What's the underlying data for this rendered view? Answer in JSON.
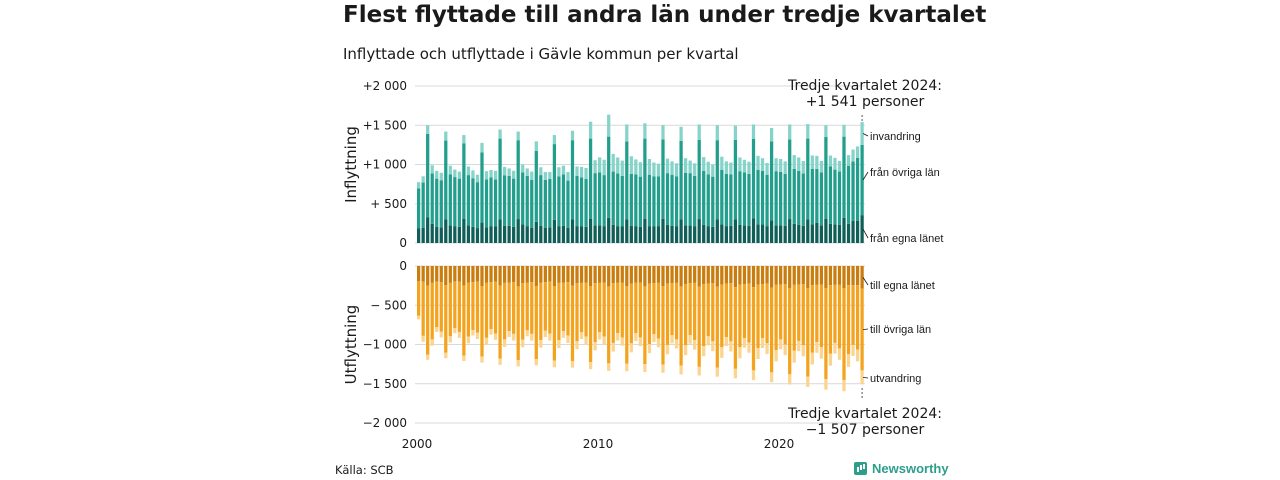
{
  "title": "Flest flyttade till andra län under tredje kvartalet",
  "subtitle": "Inflyttade och utflyttade i Gävle kommun per kvartal",
  "source": "Källa: SCB",
  "brand": {
    "name": "Newsworthy",
    "icon": "chart-bubble-icon"
  },
  "chart_data": [
    {
      "type": "bar",
      "stacked": true,
      "ylabel": "Inflyttning",
      "ylim": [
        0,
        2000
      ],
      "yticks": [
        0,
        500,
        1000,
        1500,
        2000
      ],
      "ytick_labels": [
        "0",
        "+ 500",
        "+1 000",
        "+1 500",
        "+2 000"
      ],
      "grid": true,
      "x_start": "2000 Q1",
      "quarters": 99,
      "xticks": [
        "2000",
        "2010",
        "2020"
      ],
      "note": [
        "Tredje kvartalet 2024:",
        "+1 541 personer"
      ],
      "series": [
        {
          "name": "från egna länet",
          "color": "#0f5e57",
          "values": [
            185,
            195,
            325,
            245,
            205,
            200,
            300,
            225,
            215,
            205,
            310,
            225,
            205,
            190,
            260,
            200,
            215,
            210,
            300,
            220,
            220,
            205,
            305,
            235,
            215,
            195,
            270,
            220,
            195,
            200,
            295,
            210,
            220,
            195,
            300,
            215,
            210,
            205,
            310,
            225,
            225,
            215,
            320,
            230,
            215,
            210,
            300,
            220,
            215,
            205,
            310,
            215,
            210,
            215,
            310,
            230,
            220,
            215,
            300,
            225,
            225,
            210,
            305,
            230,
            215,
            205,
            300,
            235,
            215,
            220,
            300,
            230,
            225,
            220,
            315,
            235,
            235,
            215,
            290,
            225,
            225,
            220,
            305,
            245,
            230,
            220,
            300,
            235,
            255,
            225,
            310,
            245,
            235,
            230,
            320,
            245,
            280,
            285,
            355
          ]
        },
        {
          "name": "från övriga län",
          "color": "#229e8d",
          "values": [
            510,
            575,
            1065,
            640,
            615,
            600,
            1005,
            650,
            625,
            615,
            960,
            640,
            620,
            585,
            895,
            610,
            620,
            600,
            1030,
            640,
            635,
            615,
            1005,
            665,
            640,
            610,
            905,
            645,
            610,
            615,
            965,
            640,
            655,
            600,
            1010,
            640,
            625,
            610,
            1020,
            665,
            675,
            650,
            1035,
            680,
            670,
            645,
            995,
            660,
            660,
            640,
            1020,
            655,
            640,
            635,
            1010,
            660,
            650,
            635,
            1000,
            670,
            665,
            645,
            1010,
            690,
            660,
            640,
            1010,
            695,
            665,
            655,
            1015,
            685,
            675,
            660,
            1010,
            695,
            685,
            655,
            1005,
            690,
            680,
            660,
            1015,
            700,
            690,
            665,
            1030,
            710,
            690,
            675,
            1040,
            730,
            700,
            680,
            1035,
            740,
            760,
            800,
            895
          ]
        },
        {
          "name": "invandring",
          "color": "#86d4c9",
          "values": [
            80,
            80,
            110,
            105,
            100,
            95,
            115,
            110,
            95,
            90,
            105,
            110,
            100,
            95,
            120,
            105,
            95,
            110,
            115,
            110,
            95,
            100,
            110,
            100,
            95,
            105,
            120,
            100,
            100,
            90,
            115,
            115,
            110,
            110,
            120,
            120,
            135,
            140,
            215,
            165,
            190,
            195,
            280,
            225,
            205,
            195,
            215,
            225,
            190,
            185,
            195,
            200,
            175,
            160,
            180,
            185,
            170,
            165,
            180,
            185,
            160,
            160,
            195,
            175,
            160,
            155,
            190,
            170,
            160,
            150,
            180,
            175,
            160,
            155,
            185,
            180,
            160,
            150,
            170,
            165,
            165,
            160,
            190,
            175,
            170,
            160,
            185,
            170,
            165,
            145,
            150,
            140,
            150,
            135,
            150,
            135,
            150,
            145,
            290
          ]
        }
      ]
    },
    {
      "type": "bar",
      "stacked": true,
      "ylabel": "Utflyttning",
      "ylim": [
        -2000,
        0
      ],
      "yticks": [
        0,
        -500,
        -1000,
        -1500,
        -2000
      ],
      "ytick_labels": [
        "0",
        "− 500",
        "−1 000",
        "−1 500",
        "−2 000"
      ],
      "grid": true,
      "x_start": "2000 Q1",
      "quarters": 99,
      "xticks": [
        "2000",
        "2010",
        "2020"
      ],
      "note": [
        "Tredje kvartalet 2024:",
        "−1 507 personer"
      ],
      "series": [
        {
          "name": "till egna länet",
          "color": "#c97d0e",
          "values": [
            -195,
            -200,
            -250,
            -215,
            -200,
            -205,
            -245,
            -215,
            -200,
            -200,
            -250,
            -210,
            -205,
            -200,
            -255,
            -215,
            -205,
            -200,
            -250,
            -215,
            -210,
            -205,
            -260,
            -220,
            -210,
            -205,
            -255,
            -215,
            -205,
            -200,
            -255,
            -215,
            -210,
            -205,
            -250,
            -220,
            -215,
            -210,
            -255,
            -220,
            -215,
            -210,
            -260,
            -220,
            -215,
            -210,
            -255,
            -225,
            -215,
            -210,
            -260,
            -225,
            -220,
            -215,
            -255,
            -225,
            -220,
            -215,
            -260,
            -230,
            -220,
            -215,
            -265,
            -230,
            -225,
            -220,
            -265,
            -235,
            -225,
            -220,
            -270,
            -235,
            -230,
            -225,
            -270,
            -235,
            -230,
            -225,
            -275,
            -240,
            -235,
            -230,
            -280,
            -240,
            -235,
            -230,
            -280,
            -245,
            -240,
            -235,
            -280,
            -245,
            -240,
            -240,
            -285,
            -245,
            -245,
            -245,
            -290
          ]
        },
        {
          "name": "till övriga län",
          "color": "#f4a31f",
          "values": [
            -440,
            -690,
            -880,
            -720,
            -580,
            -630,
            -860,
            -680,
            -590,
            -640,
            -890,
            -690,
            -610,
            -650,
            -900,
            -700,
            -600,
            -660,
            -930,
            -720,
            -620,
            -660,
            -940,
            -720,
            -610,
            -660,
            -930,
            -730,
            -620,
            -660,
            -950,
            -730,
            -620,
            -680,
            -960,
            -740,
            -630,
            -690,
            -970,
            -750,
            -630,
            -690,
            -980,
            -760,
            -640,
            -700,
            -990,
            -760,
            -640,
            -700,
            -990,
            -770,
            -650,
            -710,
            -1000,
            -780,
            -660,
            -720,
            -1010,
            -780,
            -660,
            -730,
            -1020,
            -790,
            -670,
            -740,
            -1030,
            -800,
            -680,
            -740,
            -1040,
            -800,
            -690,
            -750,
            -1060,
            -810,
            -690,
            -760,
            -1080,
            -830,
            -700,
            -770,
            -1100,
            -840,
            -720,
            -780,
            -1130,
            -860,
            -730,
            -800,
            -1160,
            -870,
            -740,
            -810,
            -1170,
            -880,
            -760,
            -820,
            -1040
          ]
        },
        {
          "name": "utvandring",
          "color": "#fbd48f",
          "values": [
            -45,
            -75,
            -65,
            -80,
            -60,
            -75,
            -70,
            -80,
            -65,
            -75,
            -70,
            -85,
            -70,
            -80,
            -75,
            -90,
            -70,
            -80,
            -80,
            -95,
            -75,
            -85,
            -80,
            -95,
            -75,
            -85,
            -80,
            -95,
            -80,
            -90,
            -85,
            -100,
            -85,
            -95,
            -85,
            -100,
            -85,
            -95,
            -90,
            -105,
            -90,
            -100,
            -95,
            -110,
            -95,
            -105,
            -95,
            -115,
            -100,
            -110,
            -100,
            -115,
            -100,
            -110,
            -105,
            -120,
            -105,
            -115,
            -110,
            -125,
            -110,
            -120,
            -110,
            -130,
            -115,
            -125,
            -115,
            -135,
            -115,
            -130,
            -120,
            -140,
            -120,
            -130,
            -125,
            -140,
            -125,
            -135,
            -125,
            -145,
            -125,
            -135,
            -130,
            -150,
            -130,
            -140,
            -130,
            -150,
            -135,
            -145,
            -135,
            -155,
            -135,
            -145,
            -140,
            -160,
            -140,
            -150,
            -177
          ]
        }
      ]
    }
  ]
}
